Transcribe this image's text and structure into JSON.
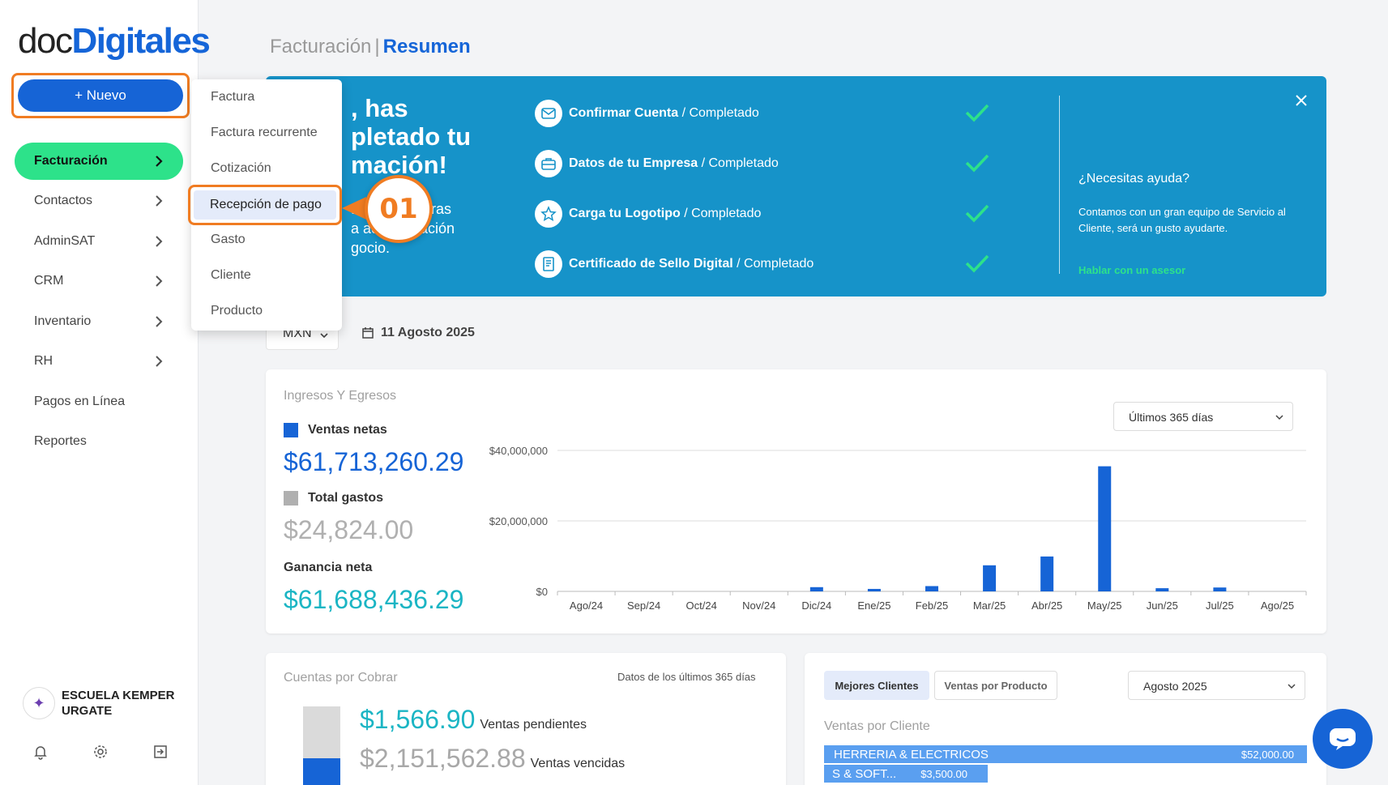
{
  "brand": {
    "part1": "doc",
    "part2": "Digitales"
  },
  "sidebar": {
    "new_button": "+ Nuevo",
    "items": [
      {
        "label": "Facturación"
      },
      {
        "label": "Contactos"
      },
      {
        "label": "AdminSAT"
      },
      {
        "label": "CRM"
      },
      {
        "label": "Inventario"
      },
      {
        "label": "RH"
      },
      {
        "label": "Pagos en Línea"
      },
      {
        "label": "Reportes"
      }
    ],
    "company": "ESCUELA KEMPER URGATE"
  },
  "dropdown": {
    "items": [
      "Factura",
      "Factura recurrente",
      "Cotización",
      "Recepción de pago",
      "Gasto",
      "Cliente",
      "Producto"
    ],
    "highlighted": "Recepción de pago",
    "callout": "01"
  },
  "header": {
    "section": "Facturación",
    "separator": "|",
    "current": "Resumen"
  },
  "banner": {
    "welcome_title": ", has\npletado tu\nmación!",
    "welcome_sub": "a             cturas\na adm       ación\ngocio.",
    "steps": [
      {
        "icon": "mail-icon",
        "title": "Confirmar Cuenta",
        "status": " / Completado"
      },
      {
        "icon": "briefcase-icon",
        "title": "Datos de tu Empresa",
        "status": " / Completado"
      },
      {
        "icon": "star-icon",
        "title": "Carga tu Logotipo",
        "status": " / Completado"
      },
      {
        "icon": "certificate-icon",
        "title": "Certificado de Sello Digital",
        "status": " / Completado"
      }
    ],
    "help_title": "¿Necesitas ayuda?",
    "help_text": "Contamos con un gran equipo de Servicio al Cliente, será un gusto ayudarte.",
    "help_link": "Hablar con un asesor"
  },
  "filters": {
    "currency": "MXN",
    "date": "11 Agosto 2025"
  },
  "income_card": {
    "title": "Ingresos Y Egresos",
    "range_select": "Últimos 365 días",
    "ventas_label": "Ventas netas",
    "ventas_value": "$61,713,260.29",
    "gastos_label": "Total gastos",
    "gastos_value": "$24,824.00",
    "ganancia_label": "Ganancia neta",
    "ganancia_value": "$61,688,436.29",
    "colors": {
      "ventas": "#1664d6",
      "gastos": "#b0b0b0",
      "ganancia": "#1bb5c4"
    }
  },
  "chart_data": {
    "type": "bar",
    "categories": [
      "Ago/24",
      "Sep/24",
      "Oct/24",
      "Nov/24",
      "Dic/24",
      "Ene/25",
      "Feb/25",
      "Mar/25",
      "Abr/25",
      "May/25",
      "Jun/25",
      "Jul/25",
      "Ago/25"
    ],
    "series": [
      {
        "name": "Ventas netas",
        "values": [
          0,
          0,
          0,
          0,
          1200000,
          700000,
          1500000,
          7400000,
          9900000,
          35500000,
          900000,
          1100000,
          0
        ]
      }
    ],
    "yticks": [
      "$0",
      "$20,000,000",
      "$40,000,000"
    ],
    "ylim": [
      0,
      40000000
    ],
    "grid": true
  },
  "cxc_card": {
    "title": "Cuentas por Cobrar",
    "note": "Datos de los últimos 365 días",
    "pending_value": "$1,566.90",
    "pending_label": "Ventas pendientes",
    "overdue_value": "$2,151,562.88",
    "overdue_label": "Ventas vencidas"
  },
  "clients_card": {
    "tab_active": "Mejores Clientes",
    "tab_other": "Ventas por Producto",
    "month_select": "Agosto 2025",
    "subtitle": "Ventas por Cliente",
    "clients": [
      {
        "name": "HERRERIA & ELECTRICOS",
        "amount": "$52,000.00"
      },
      {
        "name": "S & SOFT...",
        "amount": "$3,500.00"
      }
    ]
  }
}
